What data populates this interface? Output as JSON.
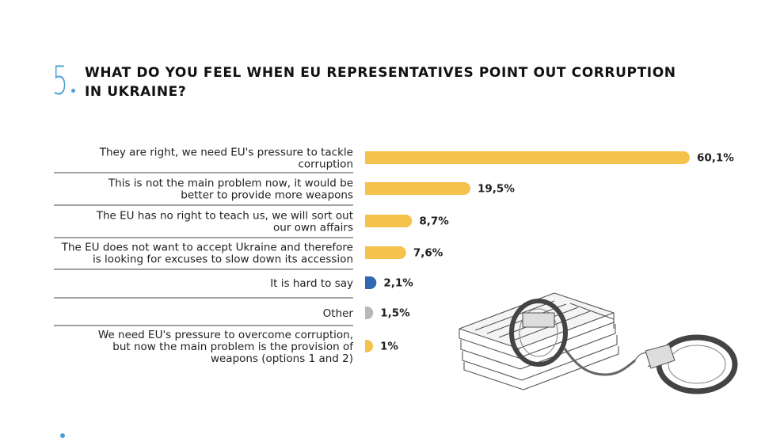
{
  "question": {
    "number": "5",
    "title": "What do you feel when EU representatives point out corruption in Ukraine?"
  },
  "chart_data": {
    "type": "bar",
    "orientation": "horizontal",
    "categories": [
      [
        "They are right, we need EU's pressure to tackle",
        "corruption"
      ],
      [
        "This is not the main problem now, it would be",
        "better to provide more weapons"
      ],
      [
        "The EU has no right to teach us, we will sort out",
        "our own affairs"
      ],
      [
        "The EU does not want to accept Ukraine and therefore",
        "is looking for excuses to slow down its accession"
      ],
      [
        "It is hard to say"
      ],
      [
        "Other"
      ],
      [
        "We need EU's pressure to overcome corruption,",
        "but now the main problem is the provision of",
        "weapons (options 1 and 2)"
      ]
    ],
    "values": [
      60.1,
      19.5,
      8.7,
      7.6,
      2.1,
      1.5,
      1
    ],
    "value_labels": [
      "60,1%",
      "19,5%",
      "8,7%",
      "7,6%",
      "2,1%",
      "1,5%",
      "1%"
    ],
    "colors": [
      "#f5c24c",
      "#f5c24c",
      "#f5c24c",
      "#f5c24c",
      "#2f67b2",
      "#b8b8b8",
      "#f5c24c"
    ],
    "xlim": [
      0,
      60.1
    ]
  }
}
